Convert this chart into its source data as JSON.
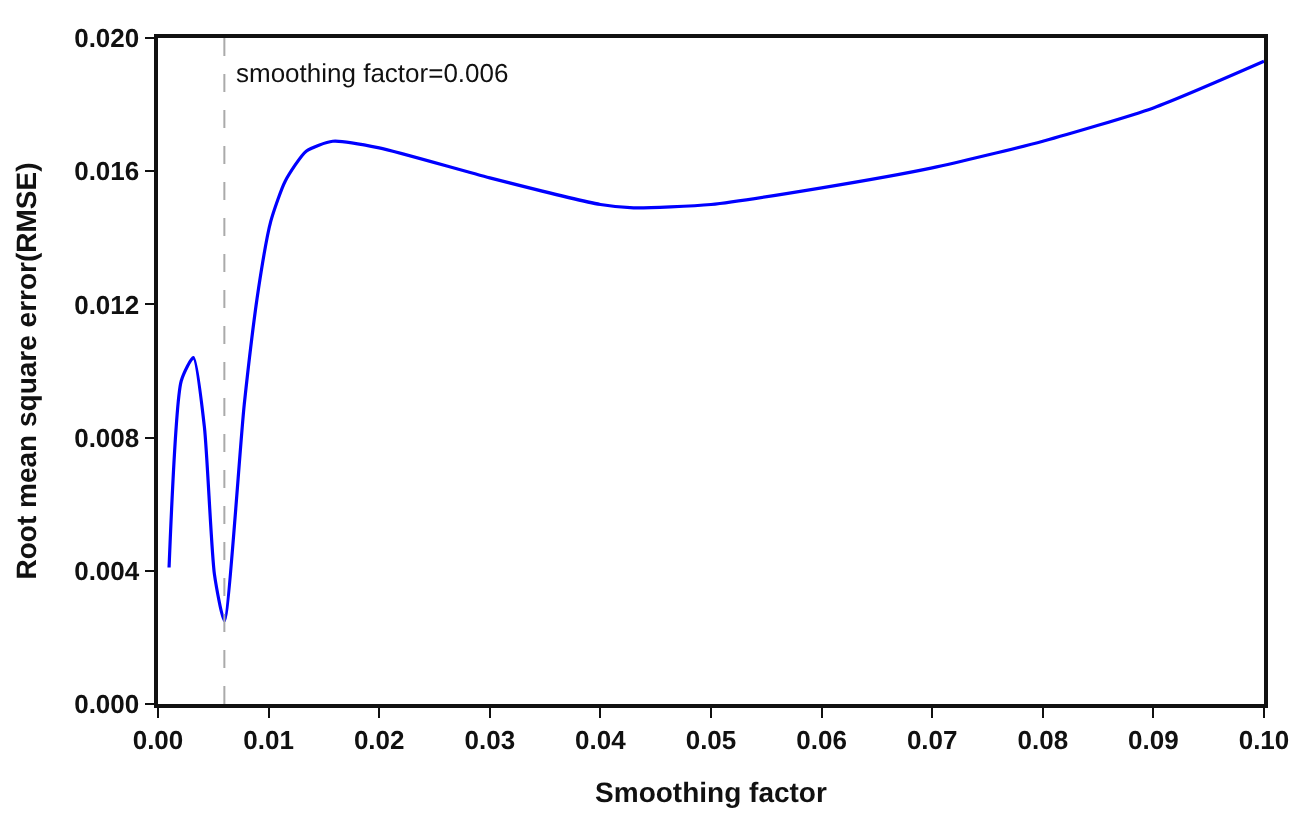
{
  "chart_data": {
    "type": "line",
    "xlabel": "Smoothing factor",
    "ylabel": "Root mean square error(RMSE)",
    "x": [
      0.001,
      0.0021,
      0.0032,
      0.0042,
      0.0051,
      0.006,
      0.0078,
      0.0091,
      0.0102,
      0.0115,
      0.0134,
      0.0158,
      0.02,
      0.03,
      0.04,
      0.043,
      0.05,
      0.06,
      0.07,
      0.08,
      0.09,
      0.1
    ],
    "series": [
      {
        "color": "#0000ff",
        "values": [
          0.0041,
          0.0097,
          0.0104,
          0.0083,
          0.0039,
          0.0025,
          0.009,
          0.0125,
          0.0145,
          0.0157,
          0.0166,
          0.0169,
          0.0167,
          0.0158,
          0.015,
          0.0149,
          0.015,
          0.0155,
          0.0161,
          0.0169,
          0.0179,
          0.0193
        ]
      }
    ],
    "xlim": [
      0,
      0.1
    ],
    "xticks": [
      {
        "value": 0,
        "label": "0.00"
      },
      {
        "value": 0.01,
        "label": "0.01"
      },
      {
        "value": 0.02,
        "label": "0.02"
      },
      {
        "value": 0.03,
        "label": "0.03"
      },
      {
        "value": 0.04,
        "label": "0.04"
      },
      {
        "value": 0.05,
        "label": "0.05"
      },
      {
        "value": 0.06,
        "label": "0.06"
      },
      {
        "value": 0.07,
        "label": "0.07"
      },
      {
        "value": 0.08,
        "label": "0.08"
      },
      {
        "value": 0.09,
        "label": "0.09"
      },
      {
        "value": 0.1,
        "label": "0.10"
      }
    ],
    "ylim": [
      0,
      0.02
    ],
    "yticks": [
      {
        "value": 0,
        "label": "0.000"
      },
      {
        "value": 0.004,
        "label": "0.004"
      },
      {
        "value": 0.008,
        "label": "0.008"
      },
      {
        "value": 0.012,
        "label": "0.012"
      },
      {
        "value": 0.016,
        "label": "0.016"
      },
      {
        "value": 0.02,
        "label": "0.020"
      }
    ],
    "ref_lines": [
      {
        "axis": "x",
        "value": 0.006,
        "label": "smoothing factor=0.006",
        "color": "#aaaaaa",
        "line_style": "dashed"
      }
    ],
    "marker": "none",
    "line_style": "solid"
  }
}
